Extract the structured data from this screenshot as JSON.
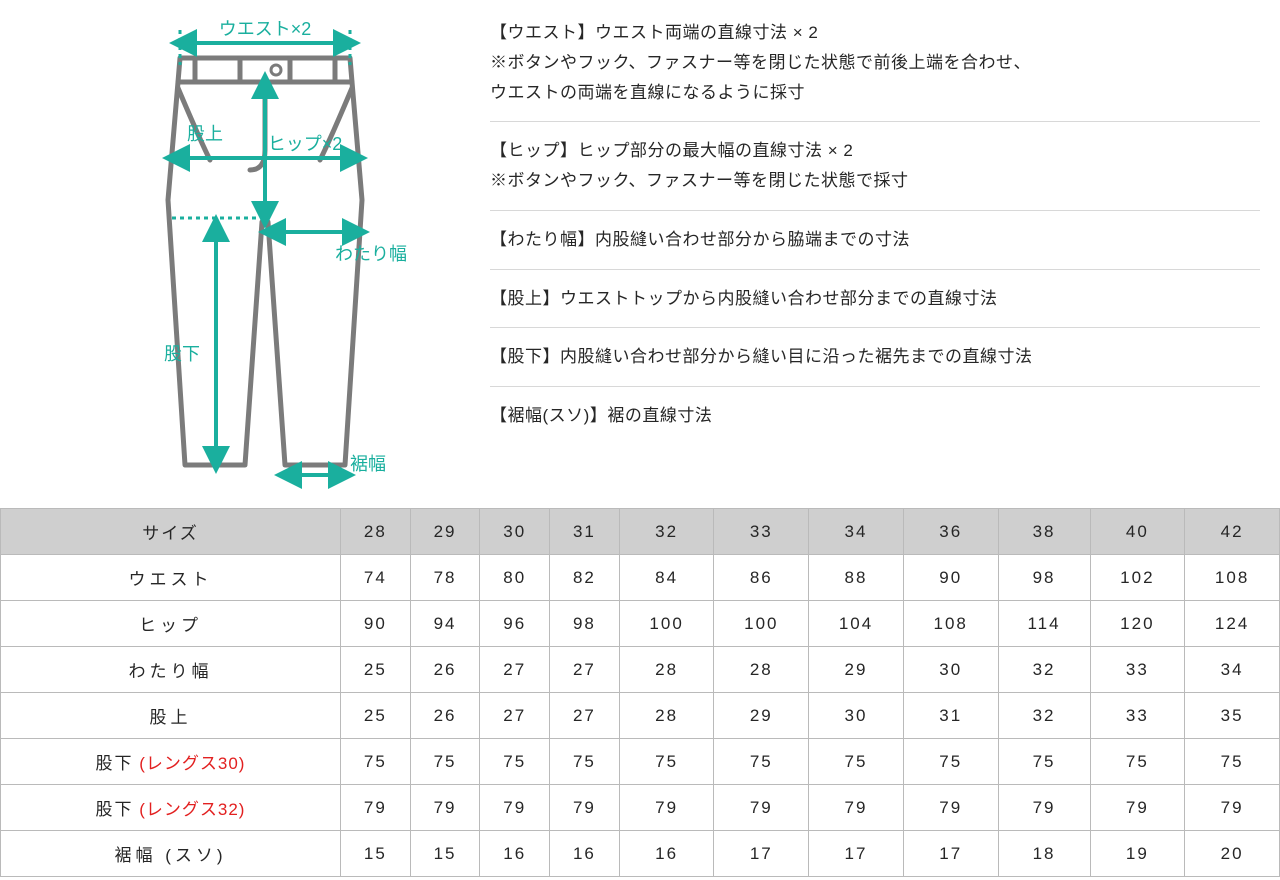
{
  "colors": {
    "teal": "#1aaf9e",
    "outline": "#7b7b7b",
    "text": "#262626",
    "red": "#e22020",
    "header_bg": "#cfcfcf",
    "border": "#bababa",
    "divider": "#d8d8d8"
  },
  "diagram": {
    "labels": {
      "waist": "ウエスト×2",
      "rise": "股上",
      "hip": "ヒップ×2",
      "thigh": "わたり幅",
      "inseam": "股下",
      "hem": "裾幅"
    }
  },
  "descriptions": [
    {
      "lines": [
        "【ウエスト】ウエスト両端の直線寸法 × 2",
        "※ボタンやフック、ファスナー等を閉じた状態で前後上端を合わせ、",
        "ウエストの両端を直線になるように採寸"
      ]
    },
    {
      "lines": [
        "【ヒップ】ヒップ部分の最大幅の直線寸法 × 2",
        "※ボタンやフック、ファスナー等を閉じた状態で採寸"
      ]
    },
    {
      "lines": [
        "【わたり幅】内股縫い合わせ部分から脇端までの寸法"
      ]
    },
    {
      "lines": [
        "【股上】ウエストトップから内股縫い合わせ部分までの直線寸法"
      ]
    },
    {
      "lines": [
        "【股下】内股縫い合わせ部分から縫い目に沿った裾先までの直線寸法"
      ]
    },
    {
      "lines": [
        "【裾幅(スソ)】裾の直線寸法"
      ]
    }
  ],
  "table": {
    "header_label": "サイズ",
    "sizes": [
      "28",
      "29",
      "30",
      "31",
      "32",
      "33",
      "34",
      "36",
      "38",
      "40",
      "42"
    ],
    "rows": [
      {
        "label": "ウエスト",
        "values": [
          "74",
          "78",
          "80",
          "82",
          "84",
          "86",
          "88",
          "90",
          "98",
          "102",
          "108"
        ]
      },
      {
        "label": "ヒップ",
        "values": [
          "90",
          "94",
          "96",
          "98",
          "100",
          "100",
          "104",
          "108",
          "114",
          "120",
          "124"
        ]
      },
      {
        "label": "わたり幅",
        "values": [
          "25",
          "26",
          "27",
          "27",
          "28",
          "28",
          "29",
          "30",
          "32",
          "33",
          "34"
        ]
      },
      {
        "label": "股上",
        "values": [
          "25",
          "26",
          "27",
          "27",
          "28",
          "29",
          "30",
          "31",
          "32",
          "33",
          "35"
        ]
      },
      {
        "label": "股下",
        "red_suffix": " (レングス30)",
        "values": [
          "75",
          "75",
          "75",
          "75",
          "75",
          "75",
          "75",
          "75",
          "75",
          "75",
          "75"
        ]
      },
      {
        "label": "股下",
        "red_suffix": " (レングス32)",
        "values": [
          "79",
          "79",
          "79",
          "79",
          "79",
          "79",
          "79",
          "79",
          "79",
          "79",
          "79"
        ]
      },
      {
        "label": "裾幅 (スソ)",
        "values": [
          "15",
          "15",
          "16",
          "16",
          "16",
          "17",
          "17",
          "17",
          "18",
          "19",
          "20"
        ]
      }
    ]
  }
}
